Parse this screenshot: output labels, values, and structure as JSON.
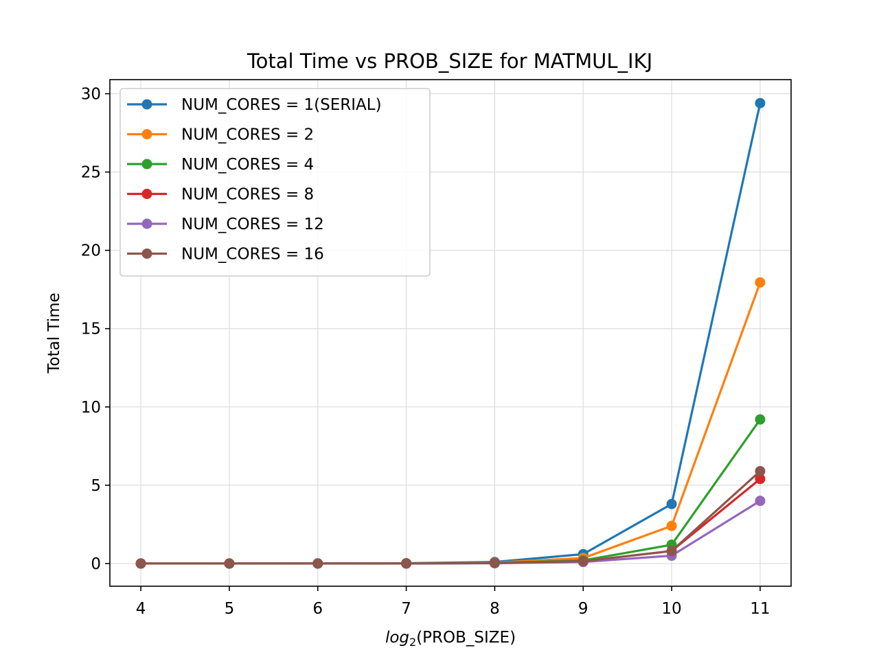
{
  "chart_data": {
    "type": "line",
    "title": "Total Time vs PROB_SIZE for MATMUL_IKJ",
    "xlabel": {
      "prefix": "log",
      "subscript": "2",
      "suffix": "(PROB_SIZE)"
    },
    "ylabel": "Total Time",
    "x": [
      4,
      5,
      6,
      7,
      8,
      9,
      10,
      11
    ],
    "xlim": [
      3.65,
      11.35
    ],
    "ylim": [
      -1.45,
      30.9
    ],
    "xticks": [
      4,
      5,
      6,
      7,
      8,
      9,
      10,
      11
    ],
    "yticks": [
      0,
      5,
      10,
      15,
      20,
      25,
      30
    ],
    "grid": true,
    "legend_position": "upper-left",
    "series": [
      {
        "name": "NUM_CORES = 1(SERIAL)",
        "color": "#1f77b4",
        "values": [
          0.0,
          0.0,
          0.01,
          0.02,
          0.1,
          0.6,
          3.8,
          29.4
        ]
      },
      {
        "name": "NUM_CORES = 2",
        "color": "#ff7f0e",
        "values": [
          0.0,
          0.0,
          0.0,
          0.01,
          0.06,
          0.35,
          2.4,
          17.95
        ]
      },
      {
        "name": "NUM_CORES = 4",
        "color": "#2ca02c",
        "values": [
          0.0,
          0.0,
          0.0,
          0.01,
          0.04,
          0.2,
          1.2,
          9.2
        ]
      },
      {
        "name": "NUM_CORES = 8",
        "color": "#d62728",
        "values": [
          0.0,
          0.0,
          0.0,
          0.0,
          0.03,
          0.15,
          0.8,
          5.4
        ]
      },
      {
        "name": "NUM_CORES = 12",
        "color": "#9467bd",
        "values": [
          0.0,
          0.0,
          0.0,
          0.0,
          0.02,
          0.1,
          0.5,
          4.0
        ]
      },
      {
        "name": "NUM_CORES = 16",
        "color": "#8c564b",
        "values": [
          0.0,
          0.0,
          0.0,
          0.0,
          0.03,
          0.15,
          0.8,
          5.9
        ]
      }
    ]
  }
}
